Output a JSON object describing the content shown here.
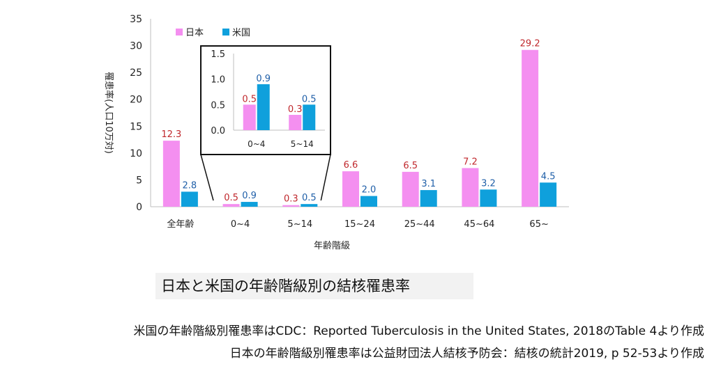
{
  "chart_data": {
    "type": "bar",
    "xlabel": "年齢階級",
    "ylabel": "罹患率(人口10万対)",
    "ylim": [
      0,
      35
    ],
    "yticks": [
      0,
      5,
      10,
      15,
      20,
      25,
      30,
      35
    ],
    "grid": false,
    "legend_position": "top-left",
    "categories": [
      "全年齢",
      "0~4",
      "5~14",
      "15~24",
      "25~44",
      "45~64",
      "65~"
    ],
    "series": [
      {
        "name": "日本",
        "color": "#f48ff0",
        "label_color": "#c0282d",
        "values": [
          12.3,
          0.5,
          0.3,
          6.6,
          6.5,
          7.2,
          29.2
        ],
        "labels": [
          "12.3",
          "0.5",
          "0.3",
          "6.6",
          "6.5",
          "7.2",
          "29.2"
        ]
      },
      {
        "name": "米国",
        "color": "#0fa0dc",
        "label_color": "#1f5fa8",
        "values": [
          2.8,
          0.9,
          0.5,
          2.0,
          3.1,
          3.2,
          4.5
        ],
        "labels": [
          "2.8",
          "0.9",
          "0.5",
          "2.0",
          "3.1",
          "3.2",
          "4.5"
        ]
      }
    ],
    "inset": {
      "ylim": [
        0,
        1.5
      ],
      "yticks": [
        "0.0",
        "0.5",
        "1.0",
        "1.5"
      ],
      "categories": [
        "0~4",
        "5~14"
      ],
      "series": [
        {
          "name": "日本",
          "values": [
            0.5,
            0.3
          ],
          "labels": [
            "0.5",
            "0.3"
          ]
        },
        {
          "name": "米国",
          "values": [
            0.9,
            0.5
          ],
          "labels": [
            "0.9",
            "0.5"
          ]
        }
      ]
    }
  },
  "caption": {
    "title": "日本と米国の年齢階級別の結核罹患率",
    "source_us": "米国の年齢階級別罹患率はCDC：Reported Tuberculosis in the United States, 2018のTable 4より作成",
    "source_jp": "日本の年齢階級別罹患率は公益財団法人結核予防会：結核の統計2019, p 52-53より作成"
  }
}
